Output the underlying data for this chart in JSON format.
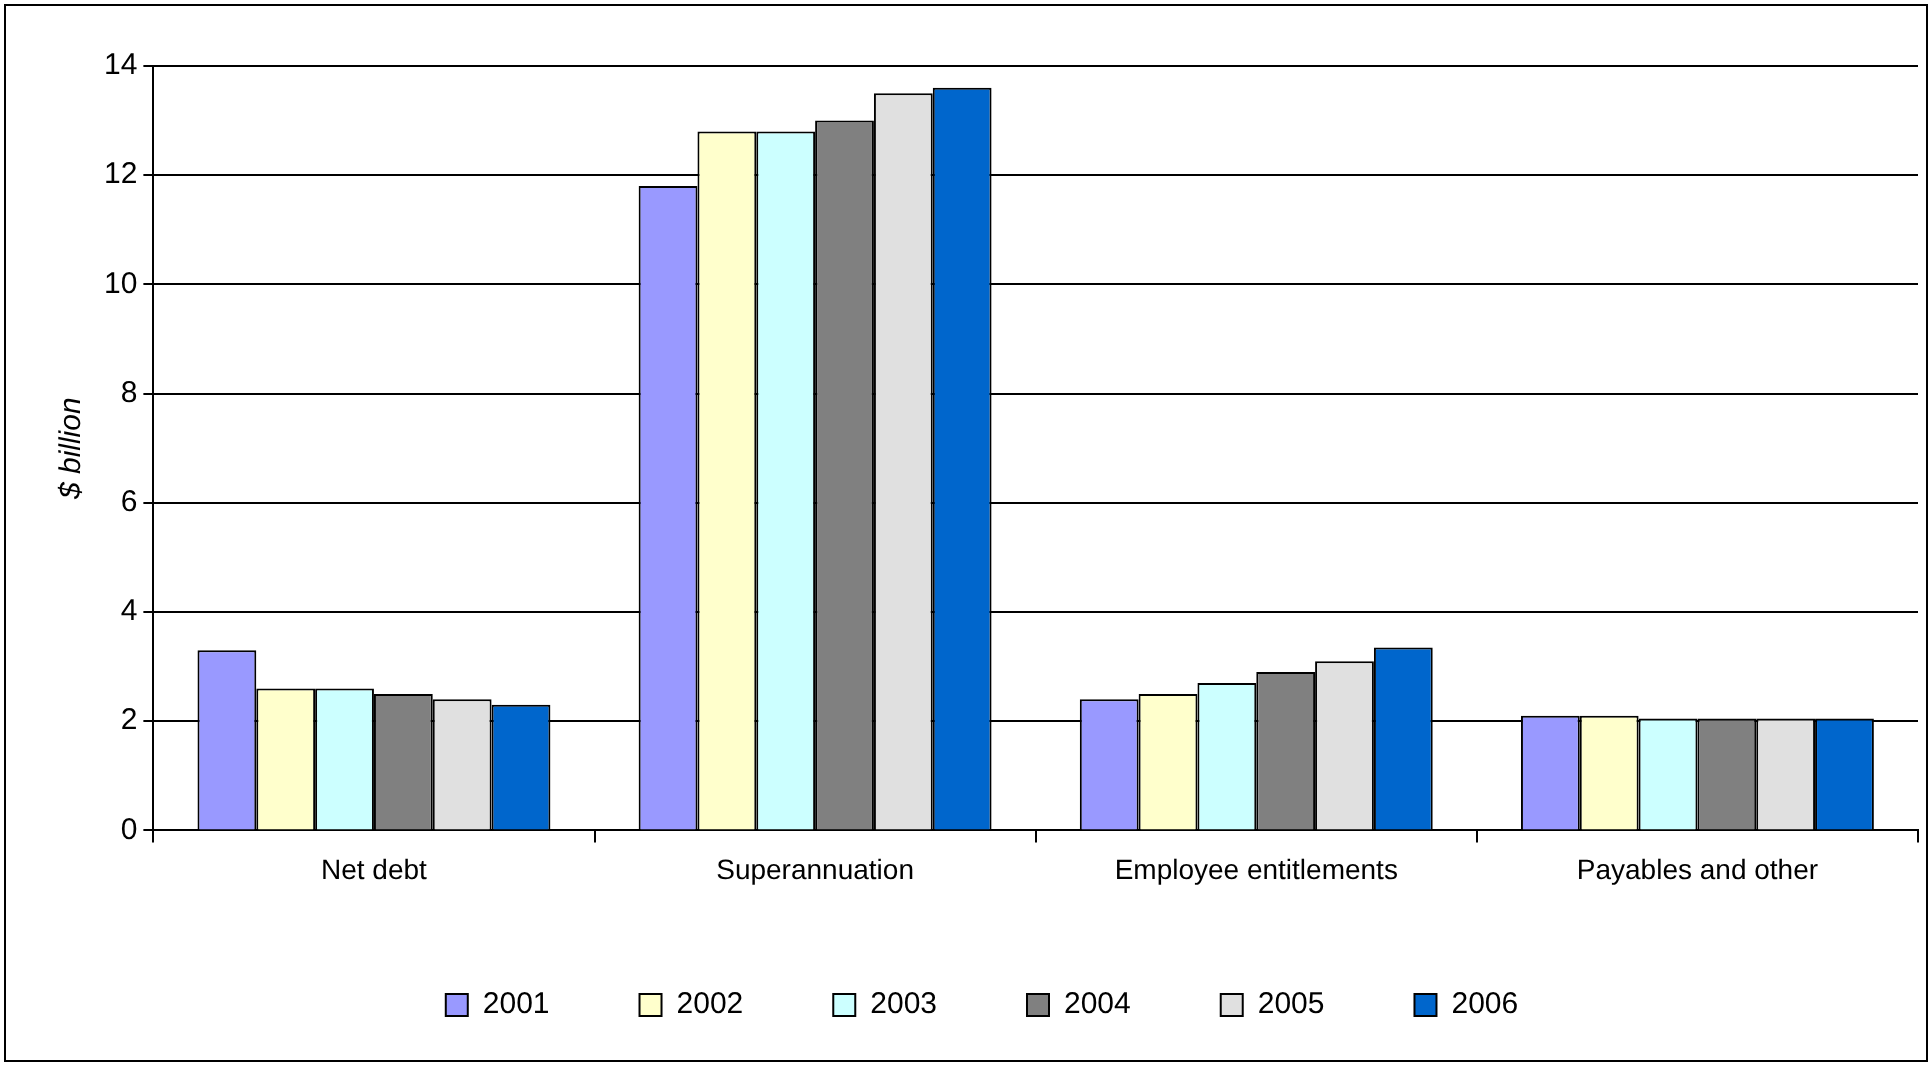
{
  "chart_data": {
    "type": "bar",
    "ylabel": "$ billion",
    "categories": [
      "Net debt",
      "Superannuation",
      "Employee entitlements",
      "Payables and other"
    ],
    "series": [
      {
        "name": "2001",
        "color": "#9999ff",
        "values": [
          3.3,
          11.8,
          2.4,
          2.1
        ]
      },
      {
        "name": "2002",
        "color": "#ffffcc",
        "values": [
          2.6,
          12.8,
          2.5,
          2.1
        ]
      },
      {
        "name": "2003",
        "color": "#ccffff",
        "values": [
          2.6,
          12.8,
          2.7,
          2.05
        ]
      },
      {
        "name": "2004",
        "color": "#808080",
        "values": [
          2.5,
          13.0,
          2.9,
          2.05
        ]
      },
      {
        "name": "2005",
        "color": "#e0e0e0",
        "values": [
          2.4,
          13.5,
          3.1,
          2.05
        ]
      },
      {
        "name": "2006",
        "color": "#0066cc",
        "values": [
          2.3,
          13.6,
          3.35,
          2.05
        ]
      }
    ],
    "ylim": [
      0,
      14
    ],
    "yticks": [
      0,
      2,
      4,
      6,
      8,
      10,
      12,
      14
    ],
    "grid": "y",
    "legend": "bottom"
  }
}
